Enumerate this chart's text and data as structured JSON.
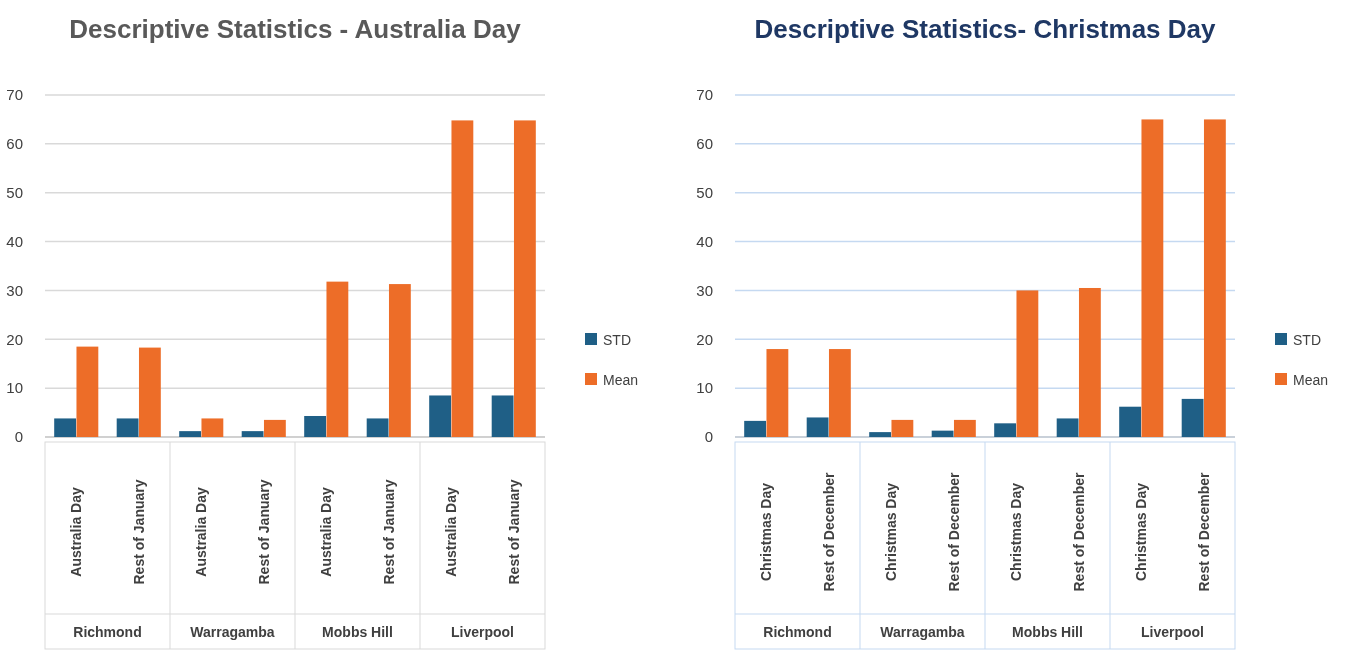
{
  "chart_data": [
    {
      "type": "bar",
      "title": "Descriptive Statistics - Australia Day",
      "categories": [
        "Australia Day",
        "Rest of January",
        "Australia Day",
        "Rest of January",
        "Australia Day",
        "Rest of January",
        "Australia Day",
        "Rest of January"
      ],
      "annotations": [
        "Richmond",
        "Warragamba",
        "Mobbs Hill",
        "Liverpool"
      ],
      "series": [
        {
          "name": "STD",
          "color": "#1f5f86",
          "values": [
            3.8,
            3.8,
            1.2,
            1.2,
            4.3,
            3.8,
            8.5,
            8.5
          ]
        },
        {
          "name": "Mean",
          "color": "#ed6d28",
          "values": [
            18.5,
            18.3,
            3.8,
            3.5,
            31.8,
            31.3,
            64.8,
            64.8
          ]
        }
      ],
      "ylim": [
        0,
        70
      ],
      "yticks": [
        0,
        10,
        20,
        30,
        40,
        50,
        60,
        70
      ],
      "grid": "y",
      "legend": "right"
    },
    {
      "type": "bar",
      "title": "Descriptive Statistics- Christmas Day",
      "categories": [
        "Christmas Day",
        "Rest of December",
        "Christmas Day",
        "Rest of December",
        "Christmas Day",
        "Rest of December",
        "Christmas Day",
        "Rest of December"
      ],
      "annotations": [
        "Richmond",
        "Warragamba",
        "Mobbs Hill",
        "Liverpool"
      ],
      "series": [
        {
          "name": "STD",
          "color": "#1f5f86",
          "values": [
            3.3,
            4,
            1,
            1.3,
            2.8,
            3.8,
            6.2,
            7.8
          ]
        },
        {
          "name": "Mean",
          "color": "#ed6d28",
          "values": [
            18,
            18,
            3.5,
            3.5,
            30,
            30.5,
            65,
            65
          ]
        }
      ],
      "ylim": [
        0,
        70
      ],
      "yticks": [
        0,
        10,
        20,
        30,
        40,
        50,
        60,
        70
      ],
      "grid": "y",
      "legend": "right"
    }
  ]
}
